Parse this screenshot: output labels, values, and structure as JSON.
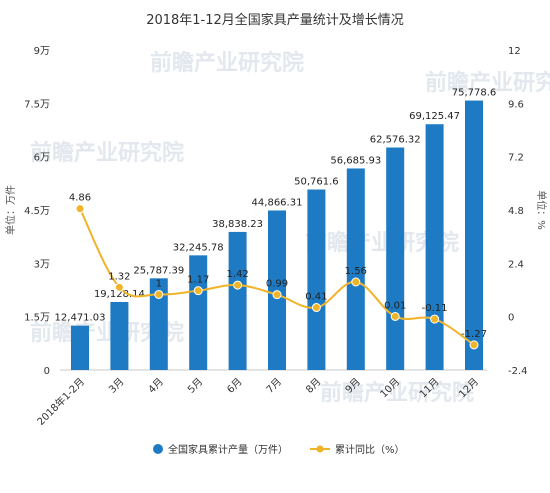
{
  "chart_data": {
    "type": "bar",
    "title": "2018年1-12月全国家具产量统计及增长情况",
    "categories": [
      "2018年1-2月",
      "3月",
      "4月",
      "5月",
      "6月",
      "7月",
      "8月",
      "9月",
      "10月",
      "11月",
      "12月"
    ],
    "series": [
      {
        "name": "全国家具累计产量（万件）",
        "type": "bar",
        "axis": "left",
        "color": "#1e7bc3",
        "values": [
          12471.03,
          19128.14,
          25787.39,
          32245.78,
          38838.23,
          44866.31,
          50761.6,
          56685.93,
          62576.32,
          69125.47,
          75778.6
        ],
        "labels": [
          "12,471.03",
          "19,128.14",
          "25,787.39",
          "32,245.78",
          "38,838.23",
          "44,866.31",
          "50,761.6",
          "56,685.93",
          "62,576.32",
          "69,125.47",
          "75,778.6"
        ]
      },
      {
        "name": "累计同比（%）",
        "type": "line",
        "axis": "right",
        "color": "#f0b429",
        "values": [
          4.86,
          1.32,
          1,
          1.17,
          1.42,
          0.99,
          0.41,
          1.56,
          0.01,
          -0.11,
          -1.27
        ],
        "labels": [
          "4.86",
          "1.32",
          "1",
          "1.17",
          "1.42",
          "0.99",
          "0.41",
          "1.56",
          "0.01",
          "-0.11",
          "-1.27"
        ]
      }
    ],
    "y_left": {
      "label": "单位：万件",
      "min": 0,
      "max": 90000,
      "ticks": [
        0,
        15000,
        30000,
        45000,
        60000,
        75000,
        90000
      ],
      "tick_labels": [
        "0",
        "1.5万",
        "3万",
        "4.5万",
        "6万",
        "7.5万",
        "9万"
      ]
    },
    "y_right": {
      "label": "单位：%",
      "min": -2.4,
      "max": 12,
      "ticks": [
        -2.4,
        0,
        2.4,
        4.8,
        7.2,
        9.6,
        12
      ],
      "tick_labels": [
        "-2.4",
        "0",
        "2.4",
        "4.8",
        "7.2",
        "9.6",
        "12"
      ]
    },
    "grid": false,
    "legend_position": "bottom"
  },
  "watermark": "前瞻产业研究院"
}
